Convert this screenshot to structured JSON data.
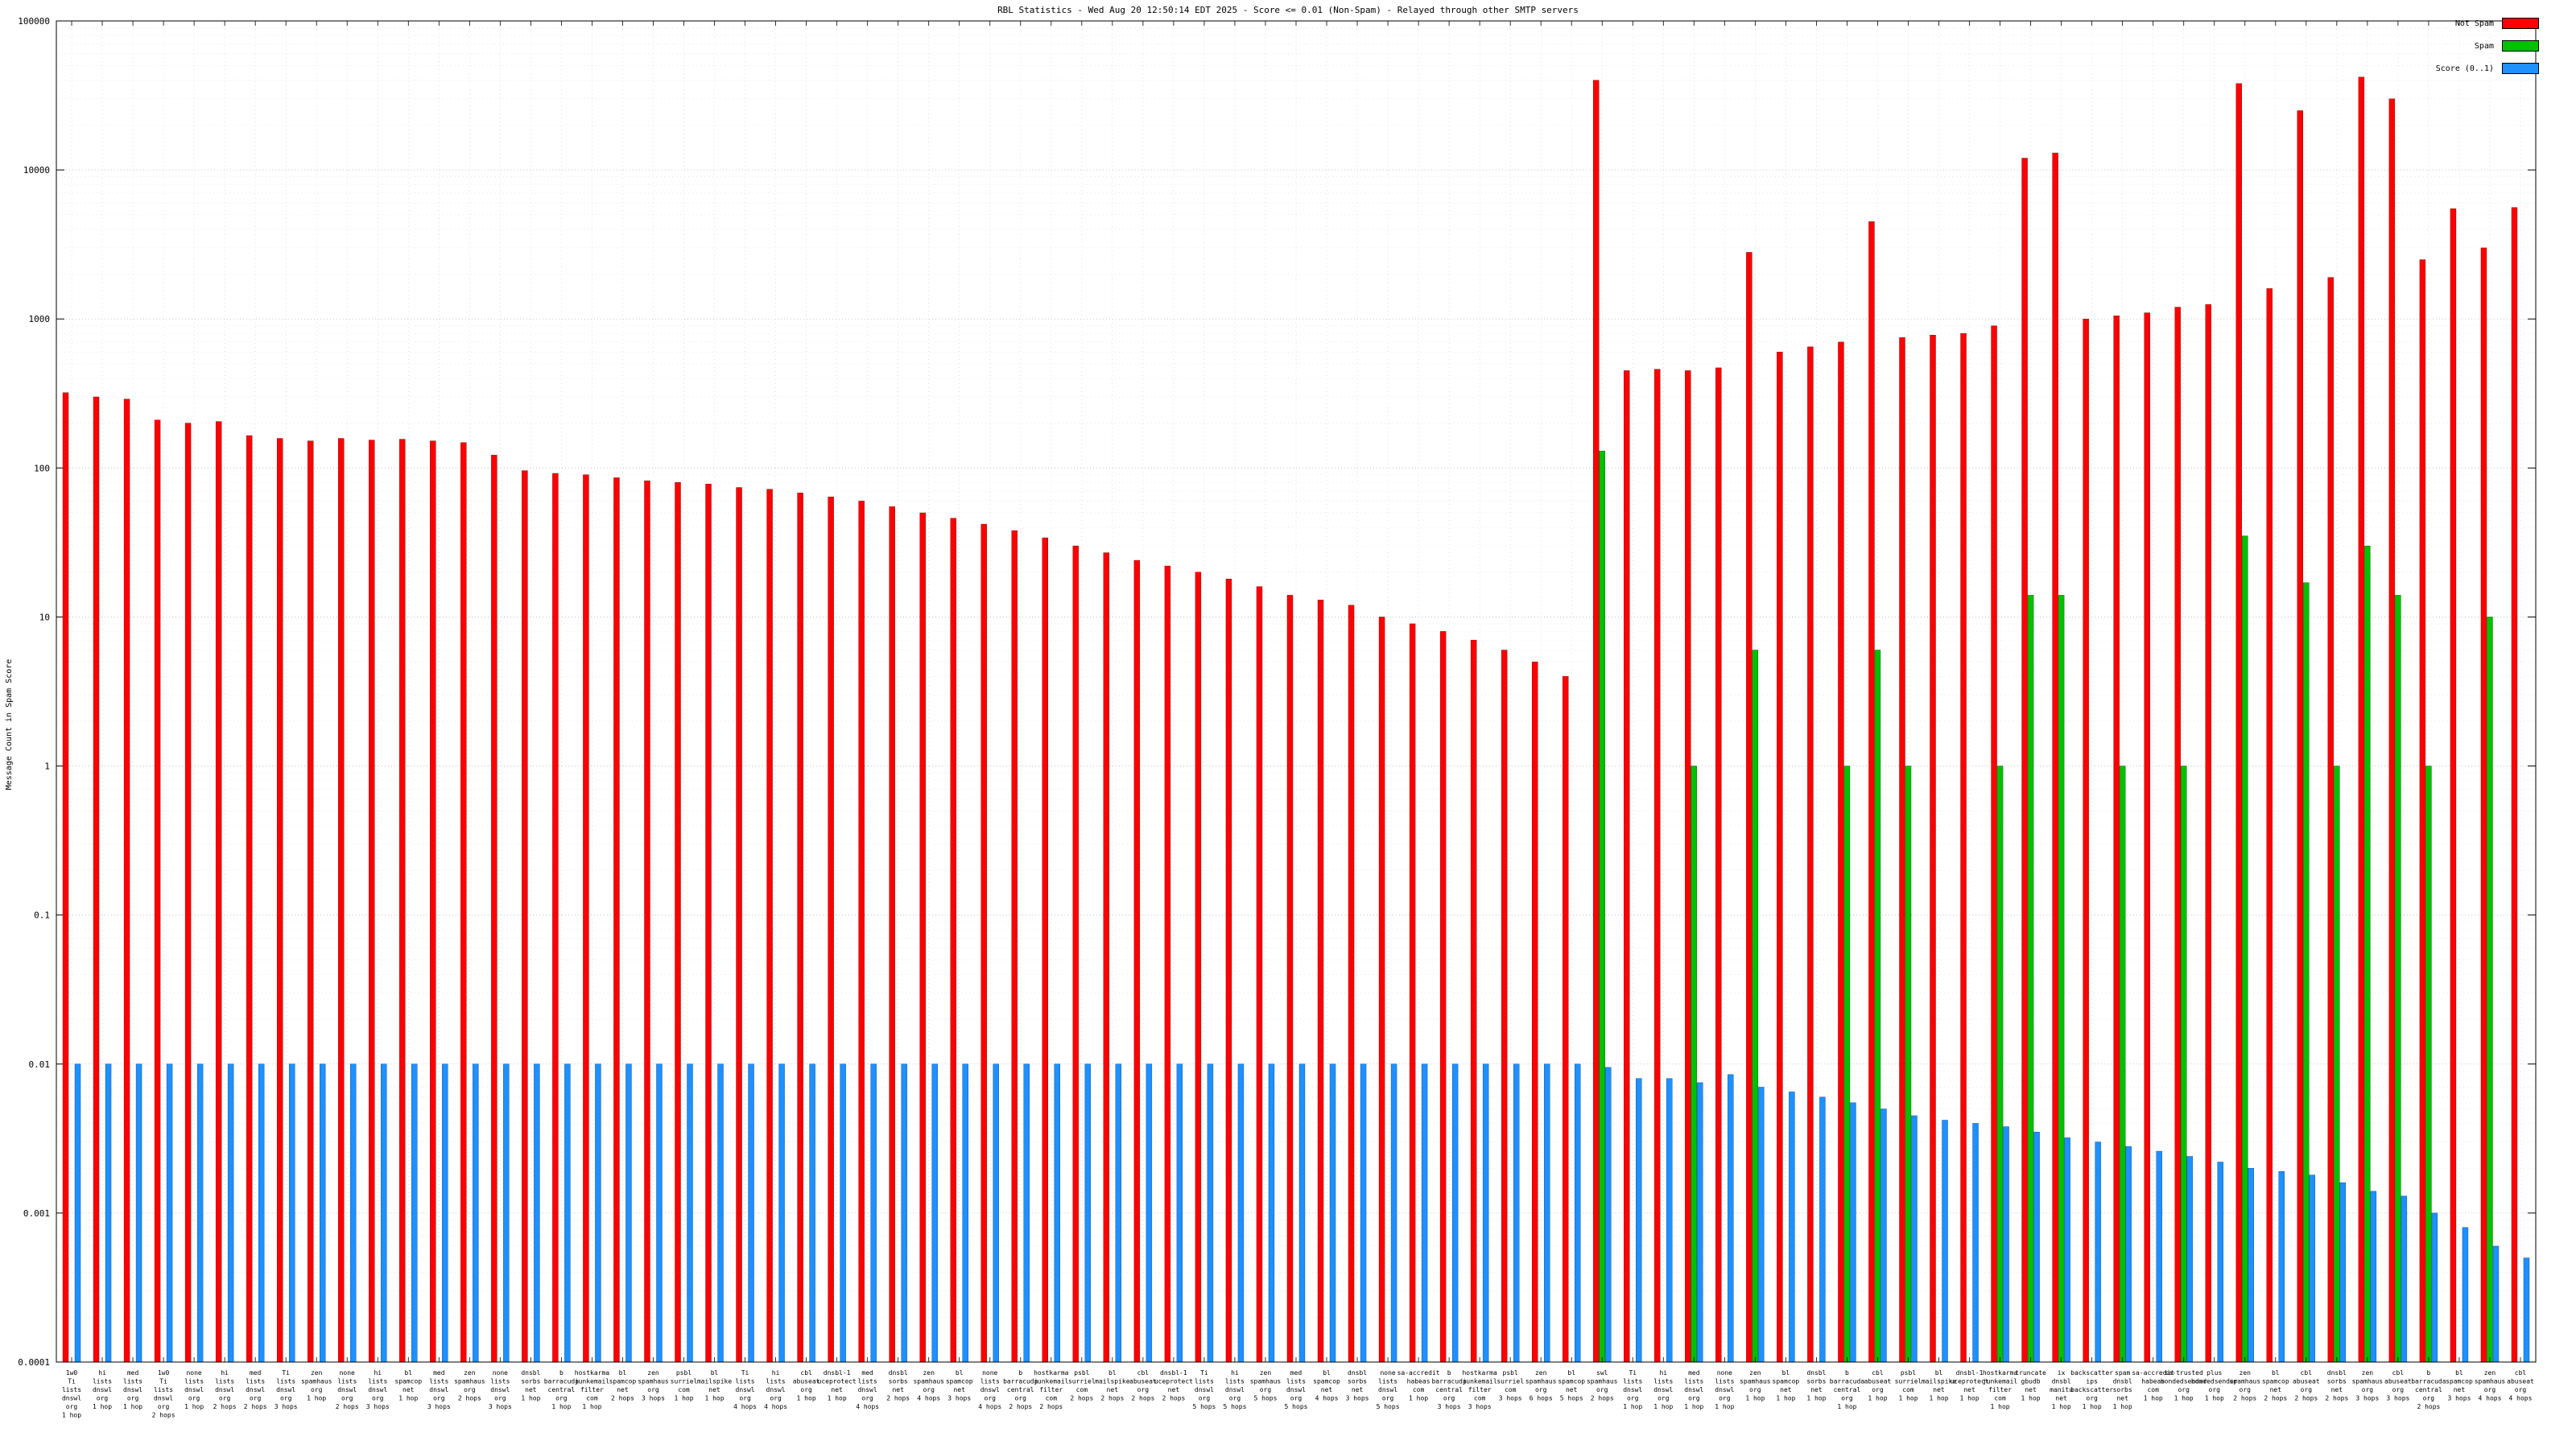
{
  "title": "RBL Statistics - Wed Aug 20 12:50:14 EDT 2025 - Score <= 0.01 (Non-Spam) - Relayed through other SMTP servers",
  "ylabel": "Message Count in Spam Score",
  "legend": [
    {
      "label": "Not Spam",
      "color": "#ff0000"
    },
    {
      "label": "Spam",
      "color": "#00c000"
    },
    {
      "label": "Score (0..1)",
      "color": "#1e90ff"
    }
  ],
  "colors": {
    "not_spam": "#ff0000",
    "spam": "#00c000",
    "score": "#1e90ff"
  },
  "chart_data": {
    "type": "bar",
    "log_y": true,
    "ylim": [
      0.0001,
      100000
    ],
    "yticks": [
      "0.0001",
      "0.001",
      "0.01",
      "0.1",
      "1",
      "10",
      "100",
      "1000",
      "10000",
      "100000"
    ],
    "series_names": [
      "Not Spam",
      "Spam",
      "Score (0..1)"
    ],
    "grid": true,
    "legend_position": "top-right",
    "groups": [
      {
        "label": [
          "1w0",
          "Ti",
          "lists",
          "dnswl",
          "org",
          "1 hop"
        ],
        "not_spam": 320,
        "spam": null,
        "score": 0.01
      },
      {
        "label": [
          "hi",
          "lists",
          "dnswl",
          "org",
          "1 hop"
        ],
        "not_spam": 300,
        "spam": null,
        "score": 0.01
      },
      {
        "label": [
          "med",
          "lists",
          "dnswl",
          "org",
          "1 hop"
        ],
        "not_spam": 290,
        "spam": null,
        "score": 0.01
      },
      {
        "label": [
          "1w0",
          "Ti",
          "lists",
          "dnswl",
          "org",
          "2 hops"
        ],
        "not_spam": 210,
        "spam": null,
        "score": 0.01
      },
      {
        "label": [
          "none",
          "lists",
          "dnswl",
          "org",
          "1 hop"
        ],
        "not_spam": 200,
        "spam": null,
        "score": 0.01
      },
      {
        "label": [
          "hi",
          "lists",
          "dnswl",
          "org",
          "2 hops"
        ],
        "not_spam": 205,
        "spam": null,
        "score": 0.01
      },
      {
        "label": [
          "med",
          "lists",
          "dnswl",
          "org",
          "2 hops"
        ],
        "not_spam": 165,
        "spam": null,
        "score": 0.01
      },
      {
        "label": [
          "Ti",
          "lists",
          "dnswl",
          "org",
          "3 hops"
        ],
        "not_spam": 158,
        "spam": null,
        "score": 0.01
      },
      {
        "label": [
          "zen",
          "spamhaus",
          "org",
          "1 hop"
        ],
        "not_spam": 152,
        "spam": null,
        "score": 0.01
      },
      {
        "label": [
          "none",
          "lists",
          "dnswl",
          "org",
          "2 hops"
        ],
        "not_spam": 158,
        "spam": null,
        "score": 0.01
      },
      {
        "label": [
          "hi",
          "lists",
          "dnswl",
          "org",
          "3 hops"
        ],
        "not_spam": 154,
        "spam": null,
        "score": 0.01
      },
      {
        "label": [
          "bl",
          "spamcop",
          "net",
          "1 hop"
        ],
        "not_spam": 156,
        "spam": null,
        "score": 0.01
      },
      {
        "label": [
          "med",
          "lists",
          "dnswl",
          "org",
          "3 hops"
        ],
        "not_spam": 152,
        "spam": null,
        "score": 0.01
      },
      {
        "label": [
          "zen",
          "spamhaus",
          "org",
          "2 hops"
        ],
        "not_spam": 148,
        "spam": null,
        "score": 0.01
      },
      {
        "label": [
          "none",
          "lists",
          "dnswl",
          "org",
          "3 hops"
        ],
        "not_spam": 122,
        "spam": null,
        "score": 0.01
      },
      {
        "label": [
          "dnsbl",
          "sorbs",
          "net",
          "1 hop"
        ],
        "not_spam": 96,
        "spam": null,
        "score": 0.01
      },
      {
        "label": [
          "b",
          "barracuda",
          "central",
          "org",
          "1 hop"
        ],
        "not_spam": 92,
        "spam": null,
        "score": 0.01
      },
      {
        "label": [
          "hostkarma",
          "junkemail",
          "filter",
          "com",
          "1 hop"
        ],
        "not_spam": 90,
        "spam": null,
        "score": 0.01
      },
      {
        "label": [
          "bl",
          "spamcop",
          "net",
          "2 hops"
        ],
        "not_spam": 86,
        "spam": null,
        "score": 0.01
      },
      {
        "label": [
          "zen",
          "spamhaus",
          "org",
          "3 hops"
        ],
        "not_spam": 82,
        "spam": null,
        "score": 0.01
      },
      {
        "label": [
          "psbl",
          "surriel",
          "com",
          "1 hop"
        ],
        "not_spam": 80,
        "spam": null,
        "score": 0.01
      },
      {
        "label": [
          "bl",
          "mailspike",
          "net",
          "1 hop"
        ],
        "not_spam": 78,
        "spam": null,
        "score": 0.01
      },
      {
        "label": [
          "Ti",
          "lists",
          "dnswl",
          "org",
          "4 hops"
        ],
        "not_spam": 74,
        "spam": null,
        "score": 0.01
      },
      {
        "label": [
          "hi",
          "lists",
          "dnswl",
          "org",
          "4 hops"
        ],
        "not_spam": 72,
        "spam": null,
        "score": 0.01
      },
      {
        "label": [
          "cbl",
          "abuseat",
          "org",
          "1 hop"
        ],
        "not_spam": 68,
        "spam": null,
        "score": 0.01
      },
      {
        "label": [
          "dnsbl-1",
          "uceprotect",
          "net",
          "1 hop"
        ],
        "not_spam": 64,
        "spam": null,
        "score": 0.01
      },
      {
        "label": [
          "med",
          "lists",
          "dnswl",
          "org",
          "4 hops"
        ],
        "not_spam": 60,
        "spam": null,
        "score": 0.01
      },
      {
        "label": [
          "dnsbl",
          "sorbs",
          "net",
          "2 hops"
        ],
        "not_spam": 55,
        "spam": null,
        "score": 0.01
      },
      {
        "label": [
          "zen",
          "spamhaus",
          "org",
          "4 hops"
        ],
        "not_spam": 50,
        "spam": null,
        "score": 0.01
      },
      {
        "label": [
          "bl",
          "spamcop",
          "net",
          "3 hops"
        ],
        "not_spam": 46,
        "spam": null,
        "score": 0.01
      },
      {
        "label": [
          "none",
          "lists",
          "dnswl",
          "org",
          "4 hops"
        ],
        "not_spam": 42,
        "spam": null,
        "score": 0.01
      },
      {
        "label": [
          "b",
          "barracuda",
          "central",
          "org",
          "2 hops"
        ],
        "not_spam": 38,
        "spam": null,
        "score": 0.01
      },
      {
        "label": [
          "hostkarma",
          "junkemail",
          "filter",
          "com",
          "2 hops"
        ],
        "not_spam": 34,
        "spam": null,
        "score": 0.01
      },
      {
        "label": [
          "psbl",
          "surriel",
          "com",
          "2 hops"
        ],
        "not_spam": 30,
        "spam": null,
        "score": 0.01
      },
      {
        "label": [
          "bl",
          "mailspike",
          "net",
          "2 hops"
        ],
        "not_spam": 27,
        "spam": null,
        "score": 0.01
      },
      {
        "label": [
          "cbl",
          "abuseat",
          "org",
          "2 hops"
        ],
        "not_spam": 24,
        "spam": null,
        "score": 0.01
      },
      {
        "label": [
          "dnsbl-1",
          "uceprotect",
          "net",
          "2 hops"
        ],
        "not_spam": 22,
        "spam": null,
        "score": 0.01
      },
      {
        "label": [
          "Ti",
          "lists",
          "dnswl",
          "org",
          "5 hops"
        ],
        "not_spam": 20,
        "spam": null,
        "score": 0.01
      },
      {
        "label": [
          "hi",
          "lists",
          "dnswl",
          "org",
          "5 hops"
        ],
        "not_spam": 18,
        "spam": null,
        "score": 0.01
      },
      {
        "label": [
          "zen",
          "spamhaus",
          "org",
          "5 hops"
        ],
        "not_spam": 16,
        "spam": null,
        "score": 0.01
      },
      {
        "label": [
          "med",
          "lists",
          "dnswl",
          "org",
          "5 hops"
        ],
        "not_spam": 14,
        "spam": null,
        "score": 0.01
      },
      {
        "label": [
          "bl",
          "spamcop",
          "net",
          "4 hops"
        ],
        "not_spam": 13,
        "spam": null,
        "score": 0.01
      },
      {
        "label": [
          "dnsbl",
          "sorbs",
          "net",
          "3 hops"
        ],
        "not_spam": 12,
        "spam": null,
        "score": 0.01
      },
      {
        "label": [
          "none",
          "lists",
          "dnswl",
          "org",
          "5 hops"
        ],
        "not_spam": 10,
        "spam": null,
        "score": 0.01
      },
      {
        "label": [
          "sa-accredit",
          "habeas",
          "com",
          "1 hop"
        ],
        "not_spam": 9,
        "spam": null,
        "score": 0.01
      },
      {
        "label": [
          "b",
          "barracuda",
          "central",
          "org",
          "3 hops"
        ],
        "not_spam": 8,
        "spam": null,
        "score": 0.01
      },
      {
        "label": [
          "hostkarma",
          "junkemail",
          "filter",
          "com",
          "3 hops"
        ],
        "not_spam": 7,
        "spam": null,
        "score": 0.01
      },
      {
        "label": [
          "psbl",
          "surriel",
          "com",
          "3 hops"
        ],
        "not_spam": 6,
        "spam": null,
        "score": 0.01
      },
      {
        "label": [
          "zen",
          "spamhaus",
          "org",
          "6 hops"
        ],
        "not_spam": 5,
        "spam": null,
        "score": 0.01
      },
      {
        "label": [
          "bl",
          "spamcop",
          "net",
          "5 hops"
        ],
        "not_spam": 4,
        "spam": null,
        "score": 0.01
      },
      {
        "label": [
          "swl",
          "spamhaus",
          "org",
          "2 hops"
        ],
        "not_spam": 40000,
        "spam": 130,
        "score": 0.0095
      },
      {
        "label": [
          "Ti",
          "lists",
          "dnswl",
          "org",
          "1 hop"
        ],
        "not_spam": 450,
        "spam": null,
        "score": 0.008
      },
      {
        "label": [
          "hi",
          "lists",
          "dnswl",
          "org",
          "1 hop"
        ],
        "not_spam": 460,
        "spam": null,
        "score": 0.008
      },
      {
        "label": [
          "med",
          "lists",
          "dnswl",
          "org",
          "1 hop"
        ],
        "not_spam": 450,
        "spam": 1,
        "score": 0.0075
      },
      {
        "label": [
          "none",
          "lists",
          "dnswl",
          "org",
          "1 hop"
        ],
        "not_spam": 470,
        "spam": null,
        "score": 0.0085
      },
      {
        "label": [
          "zen",
          "spamhaus",
          "org",
          "1 hop"
        ],
        "not_spam": 2800,
        "spam": 6,
        "score": 0.007
      },
      {
        "label": [
          "bl",
          "spamcop",
          "net",
          "1 hop"
        ],
        "not_spam": 600,
        "spam": null,
        "score": 0.0065
      },
      {
        "label": [
          "dnsbl",
          "sorbs",
          "net",
          "1 hop"
        ],
        "not_spam": 650,
        "spam": null,
        "score": 0.006
      },
      {
        "label": [
          "b",
          "barracuda",
          "central",
          "org",
          "1 hop"
        ],
        "not_spam": 700,
        "spam": 1,
        "score": 0.0055
      },
      {
        "label": [
          "cbl",
          "abuseat",
          "org",
          "1 hop"
        ],
        "not_spam": 4500,
        "spam": 6,
        "score": 0.005
      },
      {
        "label": [
          "psbl",
          "surriel",
          "com",
          "1 hop"
        ],
        "not_spam": 750,
        "spam": 1,
        "score": 0.0045
      },
      {
        "label": [
          "bl",
          "mailspike",
          "net",
          "1 hop"
        ],
        "not_spam": 780,
        "spam": null,
        "score": 0.0042
      },
      {
        "label": [
          "dnsbl-1",
          "uceprotect",
          "net",
          "1 hop"
        ],
        "not_spam": 800,
        "spam": null,
        "score": 0.004
      },
      {
        "label": [
          "hostkarma",
          "junkemail",
          "filter",
          "com",
          "1 hop"
        ],
        "not_spam": 900,
        "spam": 1,
        "score": 0.0038
      },
      {
        "label": [
          "truncate",
          "gbudb",
          "net",
          "1 hop"
        ],
        "not_spam": 12000,
        "spam": 14,
        "score": 0.0035
      },
      {
        "label": [
          "ix",
          "dnsbl",
          "manitu",
          "net",
          "1 hop"
        ],
        "not_spam": 13000,
        "spam": 14,
        "score": 0.0032
      },
      {
        "label": [
          "backscatter",
          "ips",
          "backscatter",
          "org",
          "1 hop"
        ],
        "not_spam": 1000,
        "spam": null,
        "score": 0.003
      },
      {
        "label": [
          "spam",
          "dnsbl",
          "sorbs",
          "net",
          "1 hop"
        ],
        "not_spam": 1050,
        "spam": 1,
        "score": 0.0028
      },
      {
        "label": [
          "sa-accredit",
          "habeas",
          "com",
          "1 hop"
        ],
        "not_spam": 1100,
        "spam": null,
        "score": 0.0026
      },
      {
        "label": [
          "sa-trusted",
          "bondedsender",
          "org",
          "1 hop"
        ],
        "not_spam": 1200,
        "spam": 1,
        "score": 0.0024
      },
      {
        "label": [
          "plus",
          "bondedsender",
          "org",
          "1 hop"
        ],
        "not_spam": 1250,
        "spam": null,
        "score": 0.0022
      },
      {
        "label": [
          "zen",
          "spamhaus",
          "org",
          "2 hops"
        ],
        "not_spam": 38000,
        "spam": 35,
        "score": 0.002
      },
      {
        "label": [
          "bl",
          "spamcop",
          "net",
          "2 hops"
        ],
        "not_spam": 1600,
        "spam": null,
        "score": 0.0019
      },
      {
        "label": [
          "cbl",
          "abuseat",
          "org",
          "2 hops"
        ],
        "not_spam": 25000,
        "spam": 17,
        "score": 0.0018
      },
      {
        "label": [
          "dnsbl",
          "sorbs",
          "net",
          "2 hops"
        ],
        "not_spam": 1900,
        "spam": 1,
        "score": 0.0016
      },
      {
        "label": [
          "zen",
          "spamhaus",
          "org",
          "3 hops"
        ],
        "not_spam": 42000,
        "spam": 30,
        "score": 0.0014
      },
      {
        "label": [
          "cbl",
          "abuseat",
          "org",
          "3 hops"
        ],
        "not_spam": 30000,
        "spam": 14,
        "score": 0.0013
      },
      {
        "label": [
          "b",
          "barracuda",
          "central",
          "org",
          "2 hops"
        ],
        "not_spam": 2500,
        "spam": 1,
        "score": 0.001
      },
      {
        "label": [
          "bl",
          "spamcop",
          "net",
          "3 hops"
        ],
        "not_spam": 5500,
        "spam": null,
        "score": 0.0008
      },
      {
        "label": [
          "zen",
          "spamhaus",
          "org",
          "4 hops"
        ],
        "not_spam": 3000,
        "spam": 10,
        "score": 0.0006
      },
      {
        "label": [
          "cbl",
          "abuseat",
          "org",
          "4 hops"
        ],
        "not_spam": 5600,
        "spam": null,
        "score": 0.0005
      }
    ]
  }
}
